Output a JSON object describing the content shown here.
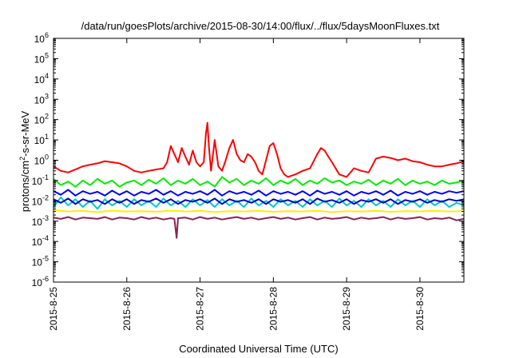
{
  "chart_data": {
    "type": "line",
    "title": "/data/run/goesPlots/archive/2015-08-30/14:00/flux/../flux/5daysMoonFluxes.txt",
    "xlabel": "Coordinated Universal Time (UTC)",
    "ylabel": "protons/cm²-s-sr-MeV",
    "ylabel_parts": {
      "pre": "protons/cm",
      "sup": "2",
      "post": "-s-sr-MeV"
    },
    "x_ticks": [
      "2015-8-25",
      "2015-8-26",
      "2015-8-27",
      "2015-8-28",
      "2015-8-29",
      "2015-8-30"
    ],
    "x_unit": "days since 2015-8-25 00:00 UTC",
    "xlim": [
      0,
      5.6
    ],
    "yscale": "log",
    "ylim": [
      1e-06,
      1000000.0
    ],
    "y_ticks": [
      {
        "base": "10",
        "exp": "-6",
        "value": 1e-06
      },
      {
        "base": "10",
        "exp": "-5",
        "value": 1e-05
      },
      {
        "base": "10",
        "exp": "-4",
        "value": 0.0001
      },
      {
        "base": "10",
        "exp": "-3",
        "value": 0.001
      },
      {
        "base": "10",
        "exp": "-2",
        "value": 0.01
      },
      {
        "base": "10",
        "exp": "-1",
        "value": 0.1
      },
      {
        "base": "10",
        "exp": "0",
        "value": 1
      },
      {
        "base": "10",
        "exp": "1",
        "value": 10
      },
      {
        "base": "10",
        "exp": "2",
        "value": 100
      },
      {
        "base": "10",
        "exp": "3",
        "value": 1000.0
      },
      {
        "base": "10",
        "exp": "4",
        "value": 10000.0
      },
      {
        "base": "10",
        "exp": "5",
        "value": 100000.0
      },
      {
        "base": "10",
        "exp": "6",
        "value": 1000000.0
      }
    ],
    "grid": false,
    "legend": "none",
    "series": [
      {
        "color": "#ff0000",
        "x": [
          0,
          0.1,
          0.2,
          0.3,
          0.4,
          0.5,
          0.6,
          0.7,
          0.8,
          0.9,
          1.0,
          1.1,
          1.2,
          1.3,
          1.4,
          1.5,
          1.55,
          1.6,
          1.65,
          1.7,
          1.75,
          1.8,
          1.85,
          1.9,
          1.95,
          2.0,
          2.05,
          2.08,
          2.1,
          2.12,
          2.15,
          2.2,
          2.25,
          2.3,
          2.35,
          2.4,
          2.45,
          2.5,
          2.55,
          2.6,
          2.65,
          2.7,
          2.75,
          2.8,
          2.85,
          2.9,
          2.95,
          3.0,
          3.05,
          3.1,
          3.15,
          3.2,
          3.3,
          3.4,
          3.5,
          3.6,
          3.65,
          3.7,
          3.75,
          3.8,
          3.9,
          4.0,
          4.1,
          4.2,
          4.3,
          4.4,
          4.5,
          4.6,
          4.7,
          4.8,
          4.9,
          5.0,
          5.1,
          5.2,
          5.3,
          5.4,
          5.5,
          5.6
        ],
        "y": [
          0.5,
          0.3,
          0.25,
          0.35,
          0.5,
          0.6,
          0.7,
          0.9,
          0.8,
          0.7,
          0.5,
          0.3,
          0.25,
          0.3,
          0.35,
          0.4,
          0.8,
          5,
          2,
          0.8,
          4,
          1.5,
          0.6,
          3,
          0.8,
          0.5,
          0.8,
          20,
          70,
          5,
          0.3,
          10,
          0.5,
          0.3,
          1,
          4,
          10,
          2,
          1,
          0.8,
          2,
          1.5,
          0.8,
          0.3,
          0.2,
          1,
          5,
          7,
          2,
          0.4,
          0.2,
          0.15,
          0.2,
          0.3,
          0.4,
          2,
          4,
          3,
          1.5,
          0.8,
          0.2,
          0.15,
          0.4,
          0.3,
          0.25,
          1.2,
          1.5,
          1.3,
          1.0,
          1.2,
          0.9,
          0.8,
          0.6,
          0.5,
          0.5,
          0.6,
          0.7,
          0.9
        ]
      },
      {
        "color": "#00ee00",
        "x": [
          0,
          0.1,
          0.2,
          0.3,
          0.4,
          0.5,
          0.6,
          0.7,
          0.8,
          0.9,
          1.0,
          1.1,
          1.2,
          1.3,
          1.4,
          1.5,
          1.6,
          1.7,
          1.8,
          1.9,
          2.0,
          2.1,
          2.2,
          2.3,
          2.4,
          2.5,
          2.6,
          2.7,
          2.8,
          2.9,
          3.0,
          3.1,
          3.2,
          3.3,
          3.4,
          3.5,
          3.6,
          3.7,
          3.8,
          3.9,
          4.0,
          4.1,
          4.2,
          4.3,
          4.4,
          4.5,
          4.6,
          4.7,
          4.8,
          4.9,
          5.0,
          5.1,
          5.2,
          5.3,
          5.4,
          5.5,
          5.6
        ],
        "y": [
          0.12,
          0.06,
          0.09,
          0.05,
          0.1,
          0.06,
          0.12,
          0.07,
          0.1,
          0.05,
          0.08,
          0.1,
          0.06,
          0.11,
          0.07,
          0.13,
          0.06,
          0.1,
          0.07,
          0.12,
          0.06,
          0.09,
          0.05,
          0.15,
          0.08,
          0.12,
          0.06,
          0.1,
          0.07,
          0.13,
          0.06,
          0.1,
          0.07,
          0.12,
          0.06,
          0.1,
          0.07,
          0.13,
          0.08,
          0.1,
          0.06,
          0.09,
          0.07,
          0.11,
          0.06,
          0.1,
          0.07,
          0.12,
          0.06,
          0.1,
          0.07,
          0.09,
          0.06,
          0.1,
          0.07,
          0.08,
          0.1
        ]
      },
      {
        "color": "#00c8c8",
        "x": [
          0,
          0.1,
          0.2,
          0.3,
          0.4,
          0.5,
          0.6,
          0.7,
          0.8,
          0.9,
          1.0,
          1.1,
          1.2,
          1.3,
          1.4,
          1.5,
          1.6,
          1.7,
          1.8,
          1.9,
          2.0,
          2.1,
          2.2,
          2.3,
          2.4,
          2.5,
          2.6,
          2.7,
          2.8,
          2.9,
          3.0,
          3.1,
          3.2,
          3.3,
          3.4,
          3.5,
          3.6,
          3.7,
          3.8,
          3.9,
          4.0,
          4.1,
          4.2,
          4.3,
          4.4,
          4.5,
          4.6,
          4.7,
          4.8,
          4.9,
          5.0,
          5.1,
          5.2,
          5.3,
          5.4,
          5.5,
          5.6
        ],
        "y": [
          0.005,
          0.015,
          0.006,
          0.012,
          0.005,
          0.01,
          0.004,
          0.012,
          0.006,
          0.01,
          0.005,
          0.012,
          0.006,
          0.01,
          0.005,
          0.013,
          0.006,
          0.01,
          0.005,
          0.012,
          0.006,
          0.011,
          0.005,
          0.012,
          0.006,
          0.01,
          0.005,
          0.013,
          0.006,
          0.01,
          0.005,
          0.012,
          0.006,
          0.01,
          0.005,
          0.012,
          0.006,
          0.01,
          0.005,
          0.013,
          0.006,
          0.01,
          0.005,
          0.012,
          0.006,
          0.01,
          0.005,
          0.012,
          0.006,
          0.01,
          0.005,
          0.012,
          0.006,
          0.01,
          0.005,
          0.008,
          0.006
        ]
      },
      {
        "color": "#0000ff",
        "x": [
          0,
          0.1,
          0.2,
          0.3,
          0.4,
          0.5,
          0.6,
          0.7,
          0.8,
          0.9,
          1.0,
          1.1,
          1.2,
          1.3,
          1.4,
          1.5,
          1.6,
          1.7,
          1.8,
          1.9,
          2.0,
          2.1,
          2.2,
          2.3,
          2.4,
          2.5,
          2.6,
          2.7,
          2.8,
          2.9,
          3.0,
          3.1,
          3.2,
          3.3,
          3.4,
          3.5,
          3.6,
          3.7,
          3.8,
          3.9,
          4.0,
          4.1,
          4.2,
          4.3,
          4.4,
          4.5,
          4.6,
          4.7,
          4.8,
          4.9,
          5.0,
          5.1,
          5.2,
          5.3,
          5.4,
          5.5,
          5.6
        ],
        "y": [
          0.03,
          0.02,
          0.035,
          0.018,
          0.03,
          0.022,
          0.028,
          0.018,
          0.032,
          0.02,
          0.03,
          0.018,
          0.028,
          0.022,
          0.035,
          0.02,
          0.03,
          0.018,
          0.028,
          0.022,
          0.03,
          0.02,
          0.035,
          0.018,
          0.03,
          0.022,
          0.028,
          0.02,
          0.032,
          0.018,
          0.03,
          0.022,
          0.028,
          0.02,
          0.03,
          0.018,
          0.032,
          0.022,
          0.028,
          0.02,
          0.03,
          0.018,
          0.028,
          0.022,
          0.03,
          0.02,
          0.032,
          0.018,
          0.028,
          0.022,
          0.03,
          0.02,
          0.028,
          0.022,
          0.03,
          0.025,
          0.03
        ]
      },
      {
        "color": "#0000c8",
        "x": [
          0,
          0.1,
          0.2,
          0.3,
          0.4,
          0.5,
          0.6,
          0.7,
          0.8,
          0.9,
          1.0,
          1.1,
          1.2,
          1.3,
          1.4,
          1.5,
          1.6,
          1.7,
          1.8,
          1.9,
          2.0,
          2.1,
          2.2,
          2.3,
          2.4,
          2.5,
          2.6,
          2.7,
          2.8,
          2.9,
          3.0,
          3.1,
          3.2,
          3.3,
          3.4,
          3.5,
          3.6,
          3.7,
          3.8,
          3.9,
          4.0,
          4.1,
          4.2,
          4.3,
          4.4,
          4.5,
          4.6,
          4.7,
          4.8,
          4.9,
          5.0,
          5.1,
          5.2,
          5.3,
          5.4,
          5.5,
          5.6
        ],
        "y": [
          0.012,
          0.008,
          0.013,
          0.007,
          0.012,
          0.009,
          0.011,
          0.007,
          0.012,
          0.008,
          0.012,
          0.007,
          0.011,
          0.009,
          0.013,
          0.008,
          0.012,
          0.007,
          0.011,
          0.009,
          0.012,
          0.008,
          0.013,
          0.007,
          0.012,
          0.009,
          0.011,
          0.008,
          0.012,
          0.007,
          0.012,
          0.009,
          0.011,
          0.008,
          0.012,
          0.007,
          0.013,
          0.009,
          0.011,
          0.008,
          0.012,
          0.007,
          0.011,
          0.009,
          0.012,
          0.008,
          0.012,
          0.007,
          0.011,
          0.009,
          0.012,
          0.008,
          0.011,
          0.009,
          0.012,
          0.01,
          0.012
        ]
      },
      {
        "color": "#ffee00",
        "x": [
          0,
          0.2,
          0.4,
          0.6,
          0.8,
          1.0,
          1.2,
          1.4,
          1.6,
          1.8,
          2.0,
          2.2,
          2.4,
          2.6,
          2.8,
          3.0,
          3.2,
          3.4,
          3.6,
          3.8,
          4.0,
          4.2,
          4.4,
          4.6,
          4.8,
          5.0,
          5.2,
          5.4,
          5.6
        ],
        "y": [
          0.0035,
          0.003,
          0.0032,
          0.0028,
          0.0033,
          0.003,
          0.0031,
          0.0029,
          0.0033,
          0.003,
          0.0032,
          0.0028,
          0.0031,
          0.003,
          0.0032,
          0.0029,
          0.0031,
          0.003,
          0.0032,
          0.0028,
          0.0031,
          0.003,
          0.0032,
          0.0029,
          0.0031,
          0.003,
          0.0032,
          0.003,
          0.0031
        ]
      },
      {
        "color": "#8b2252",
        "x": [
          0,
          0.1,
          0.2,
          0.3,
          0.4,
          0.5,
          0.6,
          0.7,
          0.8,
          0.9,
          1.0,
          1.1,
          1.2,
          1.3,
          1.4,
          1.5,
          1.6,
          1.65,
          1.68,
          1.7,
          1.8,
          1.9,
          2.0,
          2.1,
          2.2,
          2.3,
          2.4,
          2.5,
          2.6,
          2.7,
          2.8,
          2.9,
          3.0,
          3.1,
          3.2,
          3.3,
          3.4,
          3.5,
          3.6,
          3.7,
          3.8,
          3.9,
          4.0,
          4.1,
          4.2,
          4.3,
          4.4,
          4.5,
          4.6,
          4.7,
          4.8,
          4.9,
          5.0,
          5.1,
          5.2,
          5.3,
          5.4,
          5.5,
          5.6
        ],
        "y": [
          0.0015,
          0.0013,
          0.0016,
          0.0012,
          0.0015,
          0.0014,
          0.0013,
          0.0016,
          0.0012,
          0.0015,
          0.0014,
          0.0012,
          0.0016,
          0.0013,
          0.0015,
          0.0012,
          0.0014,
          0.0013,
          0.00015,
          0.0014,
          0.0015,
          0.0012,
          0.0016,
          0.0013,
          0.0015,
          0.0012,
          0.0014,
          0.0016,
          0.0013,
          0.0015,
          0.0012,
          0.0014,
          0.0016,
          0.0013,
          0.0015,
          0.0012,
          0.0014,
          0.0016,
          0.0012,
          0.0015,
          0.0013,
          0.0014,
          0.0016,
          0.0012,
          0.0015,
          0.0013,
          0.0014,
          0.0016,
          0.0012,
          0.0015,
          0.0013,
          0.0014,
          0.0016,
          0.0012,
          0.0014,
          0.0013,
          0.0015,
          0.0011,
          0.0013
        ]
      }
    ]
  }
}
